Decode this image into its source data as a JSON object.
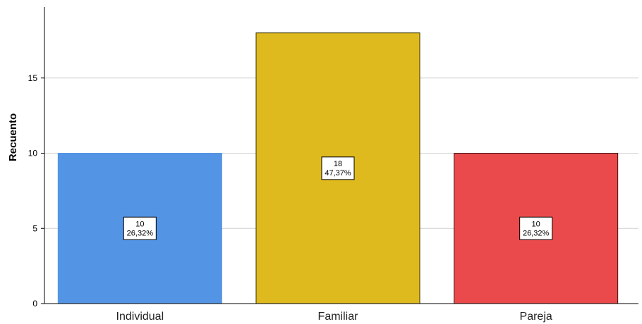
{
  "chart_data": {
    "type": "bar",
    "title": "",
    "xlabel": "",
    "ylabel": "Recuento",
    "ylim": [
      0,
      18
    ],
    "yticks": [
      0,
      5,
      10,
      15
    ],
    "grid": true,
    "categories": [
      "Individual",
      "Familiar",
      "Pareja"
    ],
    "values": [
      10,
      18,
      10
    ],
    "data_labels": [
      {
        "count": "10",
        "percent": "26,32%"
      },
      {
        "count": "18",
        "percent": "47,37%"
      },
      {
        "count": "10",
        "percent": "26,32%"
      }
    ],
    "colors": [
      "#5494e4",
      "#deba1e",
      "#ea4a4b"
    ],
    "stroke_colors": [
      "#5494e4",
      "#3a3200",
      "#3a1010"
    ]
  }
}
